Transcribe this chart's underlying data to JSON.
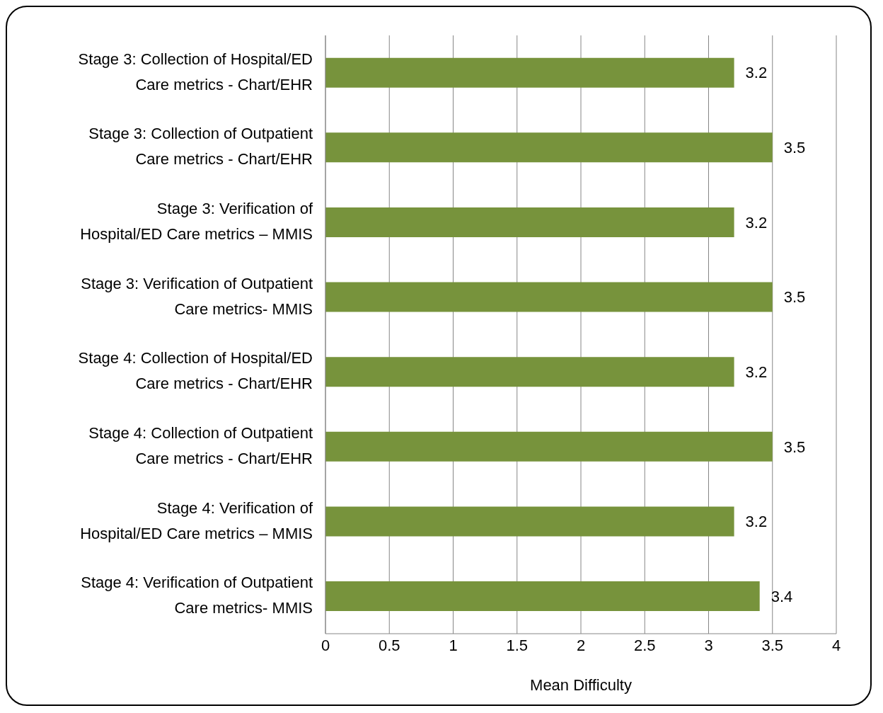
{
  "chart_data": {
    "type": "bar",
    "orientation": "horizontal",
    "xlabel": "Mean Difficulty",
    "categories": [
      "Stage 3: Collection of Hospital/ED Care metrics - Chart/EHR",
      "Stage 3: Collection of Outpatient Care metrics - Chart/EHR",
      "Stage 3: Verification of Hospital/ED Care metrics – MMIS",
      "Stage 3: Verification of Outpatient Care metrics- MMIS",
      "Stage 4: Collection of Hospital/ED Care metrics - Chart/EHR",
      "Stage 4: Collection of Outpatient Care metrics - Chart/EHR",
      "Stage 4: Verification of Hospital/ED Care metrics – MMIS",
      "Stage 4: Verification of Outpatient Care metrics- MMIS"
    ],
    "values": [
      3.2,
      3.5,
      3.2,
      3.5,
      3.2,
      3.5,
      3.2,
      3.4
    ],
    "color": "#77933c",
    "xlim": [
      0,
      4
    ],
    "xticks": [
      0,
      0.5,
      1,
      1.5,
      2,
      2.5,
      3,
      3.5,
      4
    ],
    "grid": "x",
    "data_labels": true,
    "legend": false
  }
}
